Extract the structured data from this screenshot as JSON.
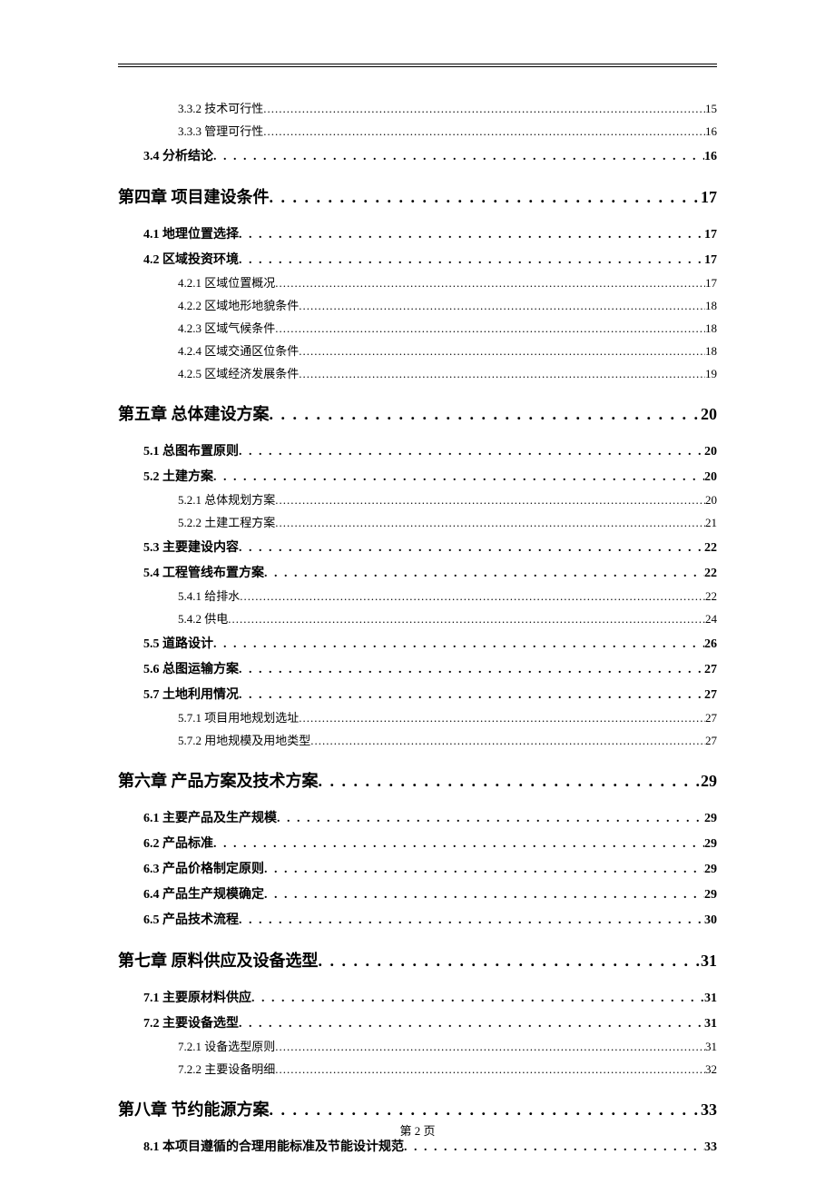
{
  "page_footer": "第 2 页",
  "dots_chapter": ". . . . . . . . . . . . . . . . . . . . . . . . . . . . . . . . . . . . . . . . . . . . . . . . . . . . . . . . . . . . . . . . . . . . . . . . . . . . . . . . . .",
  "dots_section": ". . . . . . . . . . . . . . . . . . . . . . . . . . . . . . . . . . . . . . . . . . . . . . . . . . . . . . . . . . . . . . . . . . . . . . . . . . . . . . . . . . . . . . . . . . . . . . . .",
  "dots_sub": "......................................................................................................................................................................................................",
  "entries": [
    {
      "level": "sub",
      "label": "3.3.2 技术可行性",
      "page": "15"
    },
    {
      "level": "sub",
      "label": "3.3.3 管理可行性",
      "page": "16"
    },
    {
      "level": "section",
      "label": "3.4 分析结论",
      "page": "16"
    },
    {
      "level": "chapter",
      "label": "第四章  项目建设条件",
      "page": "17"
    },
    {
      "level": "section",
      "label": "4.1 地理位置选择",
      "page": "17"
    },
    {
      "level": "section",
      "label": "4.2 区域投资环境",
      "page": "17"
    },
    {
      "level": "sub",
      "label": "4.2.1 区域位置概况",
      "page": "17"
    },
    {
      "level": "sub",
      "label": "4.2.2 区域地形地貌条件",
      "page": "18"
    },
    {
      "level": "sub",
      "label": "4.2.3 区域气候条件",
      "page": "18"
    },
    {
      "level": "sub",
      "label": "4.2.4 区域交通区位条件",
      "page": "18"
    },
    {
      "level": "sub",
      "label": "4.2.5 区域经济发展条件",
      "page": "19"
    },
    {
      "level": "chapter",
      "label": "第五章  总体建设方案",
      "page": "20"
    },
    {
      "level": "section",
      "label": "5.1 总图布置原则",
      "page": "20"
    },
    {
      "level": "section",
      "label": "5.2 土建方案",
      "page": "20"
    },
    {
      "level": "sub",
      "label": "5.2.1 总体规划方案",
      "page": "20"
    },
    {
      "level": "sub",
      "label": "5.2.2 土建工程方案",
      "page": "21"
    },
    {
      "level": "section",
      "label": "5.3 主要建设内容",
      "page": "22"
    },
    {
      "level": "section",
      "label": "5.4 工程管线布置方案",
      "page": "22"
    },
    {
      "level": "sub",
      "label": "5.4.1 给排水",
      "page": "22"
    },
    {
      "level": "sub",
      "label": "5.4.2 供电",
      "page": "24"
    },
    {
      "level": "section",
      "label": "5.5 道路设计",
      "page": "26"
    },
    {
      "level": "section",
      "label": "5.6 总图运输方案",
      "page": "27"
    },
    {
      "level": "section",
      "label": "5.7 土地利用情况",
      "page": "27"
    },
    {
      "level": "sub",
      "label": "5.7.1 项目用地规划选址",
      "page": "27"
    },
    {
      "level": "sub",
      "label": "5.7.2 用地规模及用地类型",
      "page": "27"
    },
    {
      "level": "chapter",
      "label": "第六章  产品方案及技术方案",
      "page": "29"
    },
    {
      "level": "section",
      "label": "6.1 主要产品及生产规模",
      "page": "29"
    },
    {
      "level": "section",
      "label": "6.2 产品标准",
      "page": "29"
    },
    {
      "level": "section",
      "label": "6.3 产品价格制定原则",
      "page": "29"
    },
    {
      "level": "section",
      "label": "6.4 产品生产规模确定",
      "page": "29"
    },
    {
      "level": "section",
      "label": "6.5 产品技术流程",
      "page": "30"
    },
    {
      "level": "chapter",
      "label": "第七章  原料供应及设备选型",
      "page": "31"
    },
    {
      "level": "section",
      "label": "7.1 主要原材料供应",
      "page": "31"
    },
    {
      "level": "section",
      "label": "7.2 主要设备选型",
      "page": "31"
    },
    {
      "level": "sub",
      "label": "7.2.1 设备选型原则",
      "page": "31"
    },
    {
      "level": "sub",
      "label": "7.2.2 主要设备明细",
      "page": "32"
    },
    {
      "level": "chapter",
      "label": "第八章  节约能源方案",
      "page": "33"
    },
    {
      "level": "section",
      "label": "8.1 本项目遵循的合理用能标准及节能设计规范",
      "page": "33"
    }
  ]
}
